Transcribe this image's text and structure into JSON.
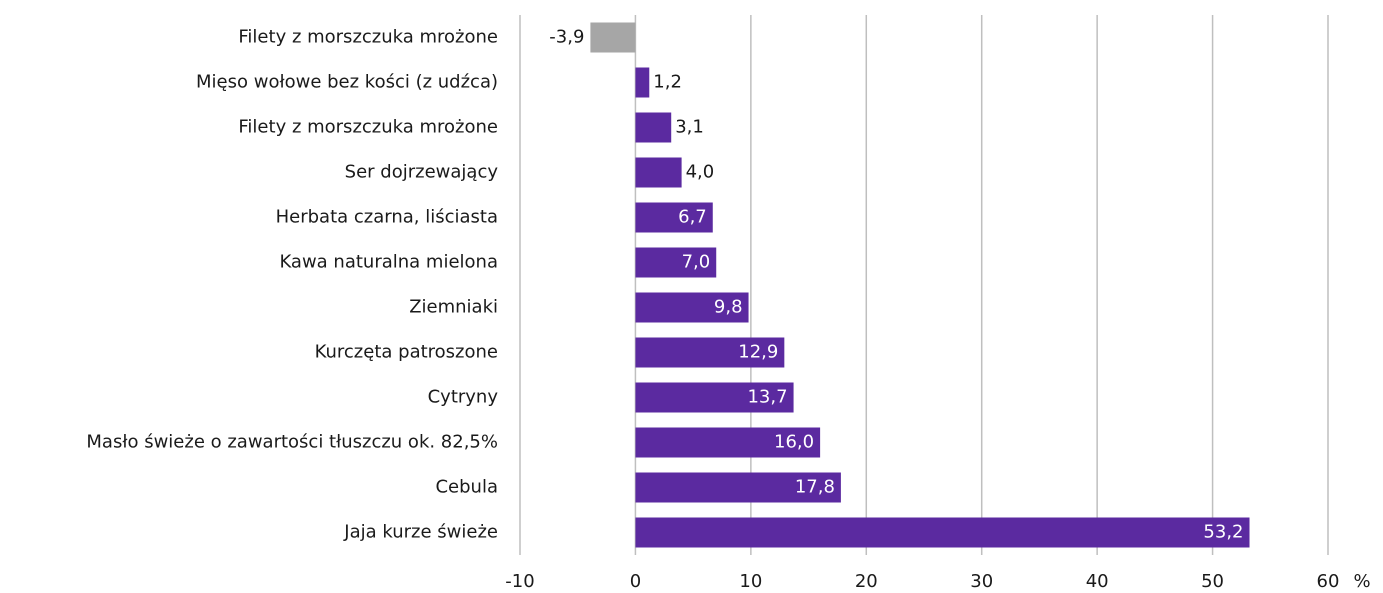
{
  "chart_data": {
    "type": "hbar",
    "categories": [
      "Filety z morszczuka mrożone",
      "Mięso wołowe bez kości (z udźca)",
      "Filety z morszczuka mrożone",
      "Ser dojrzewający",
      "Herbata czarna, liściasta",
      "Kawa naturalna mielona",
      "Ziemniaki",
      "Kurczęta patroszone",
      "Cytryny",
      "Masło świeże o zawartości tłuszczu ok. 82,5%",
      "Cebula",
      "Jaja kurze świeże"
    ],
    "values": [
      -3.9,
      1.2,
      3.1,
      4.0,
      6.7,
      7.0,
      9.8,
      12.9,
      13.7,
      16.0,
      17.8,
      53.2
    ],
    "value_labels": [
      "-3,9",
      "1,2",
      "3,1",
      "4,0",
      "6,7",
      "7,0",
      "9,8",
      "12,9",
      "13,7",
      "16,0",
      "17,8",
      "53,2"
    ],
    "colors": [
      "#a6a6a6",
      "#5b2aa0",
      "#5b2aa0",
      "#5b2aa0",
      "#5b2aa0",
      "#5b2aa0",
      "#5b2aa0",
      "#5b2aa0",
      "#5b2aa0",
      "#5b2aa0",
      "#5b2aa0",
      "#5b2aa0"
    ],
    "xlim": [
      -10,
      60
    ],
    "xticks": [
      -10,
      0,
      10,
      20,
      30,
      40,
      50,
      60
    ],
    "x_unit_label": "%",
    "grid": true
  }
}
